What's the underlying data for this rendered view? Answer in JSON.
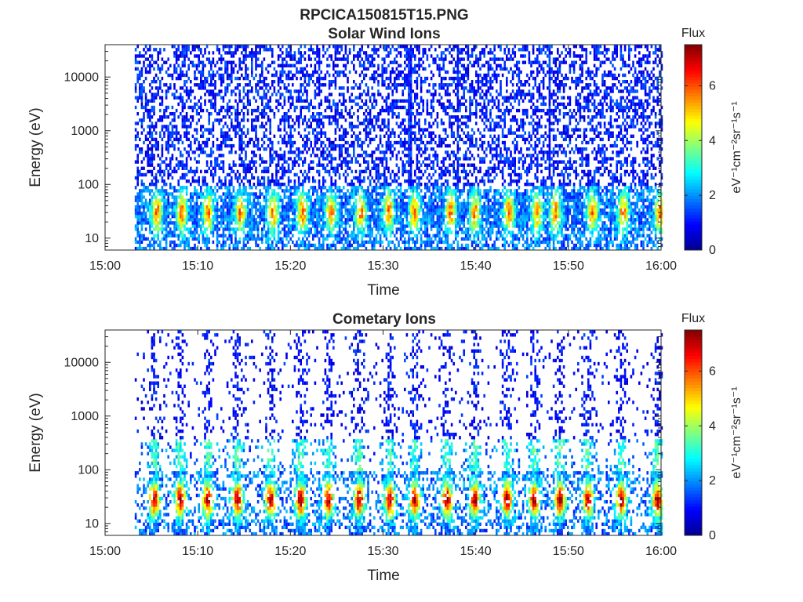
{
  "figure": {
    "filename_title": "RPCICA150815T15.PNG"
  },
  "colormap": [
    "#00008f",
    "#0000ff",
    "#0080ff",
    "#00ffff",
    "#80ff80",
    "#ffff00",
    "#ff8000",
    "#ff0000",
    "#800000"
  ],
  "chart_data": [
    {
      "type": "heatmap",
      "title": "Solar Wind Ions",
      "xlabel": "Time",
      "ylabel": "Energy (eV)",
      "x_ticks": [
        "15:00",
        "15:10",
        "15:20",
        "15:30",
        "15:40",
        "15:50",
        "16:00"
      ],
      "x_range_minutes": [
        0,
        60
      ],
      "data_start_minute": 3.2,
      "y_scale": "log",
      "y_range_eV": [
        6,
        40000
      ],
      "y_ticks": [
        {
          "value": 10,
          "label": "10"
        },
        {
          "value": 100,
          "label": "100"
        },
        {
          "value": 1000,
          "label": "1000"
        },
        {
          "value": 10000,
          "label": "10000"
        }
      ],
      "colorbar": {
        "title": "Flux",
        "unit_label": "eV⁻¹cm⁻²sr⁻¹s⁻¹",
        "range": [
          0,
          7.5
        ],
        "ticks": [
          0,
          2,
          4,
          6
        ]
      },
      "peak_energy_eV": 30,
      "peak_flux": 5.5,
      "enhancement_times_minutes": [
        5.5,
        8.2,
        11.0,
        14.5,
        18.0,
        21.2,
        24.3,
        27.5,
        30.5,
        33.3,
        37.2,
        39.8,
        43.5,
        46.5,
        48.5,
        52.5,
        55.8,
        59.8
      ],
      "vertical_streak_times_minutes": [
        32.8,
        38.0,
        47.8
      ],
      "grid": false
    },
    {
      "type": "heatmap",
      "title": "Cometary Ions",
      "xlabel": "Time",
      "ylabel": "Energy (eV)",
      "x_ticks": [
        "15:00",
        "15:10",
        "15:20",
        "15:30",
        "15:40",
        "15:50",
        "16:00"
      ],
      "x_range_minutes": [
        0,
        60
      ],
      "data_start_minute": 3.2,
      "y_scale": "log",
      "y_range_eV": [
        6,
        40000
      ],
      "y_ticks": [
        {
          "value": 10,
          "label": "10"
        },
        {
          "value": 100,
          "label": "100"
        },
        {
          "value": 1000,
          "label": "1000"
        },
        {
          "value": 10000,
          "label": "10000"
        }
      ],
      "colorbar": {
        "title": "Flux",
        "unit_label": "eV⁻¹cm⁻²sr⁻¹s⁻¹",
        "range": [
          0,
          7.5
        ],
        "ticks": [
          0,
          2,
          4,
          6
        ]
      },
      "peak_energy_eV": 28,
      "peak_flux": 7.0,
      "burst_times_minutes": [
        5.2,
        8.0,
        11.0,
        14.2,
        17.8,
        21.0,
        24.0,
        27.3,
        30.6,
        33.3,
        36.8,
        39.8,
        43.3,
        46.2,
        49.0,
        52.0,
        55.6,
        59.5
      ],
      "grid": false
    }
  ]
}
